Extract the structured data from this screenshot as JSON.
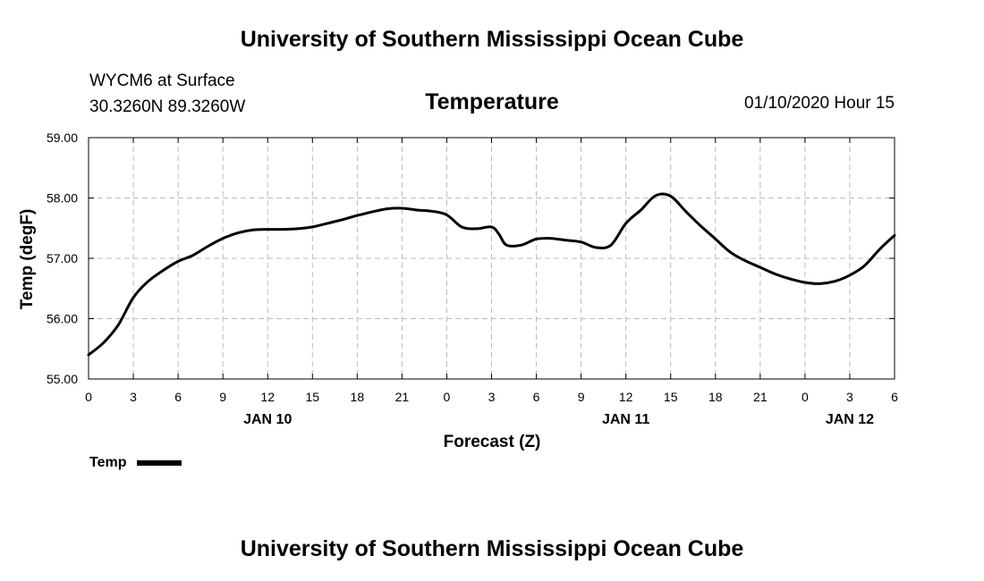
{
  "header": {
    "title": "University of Southern Mississippi Ocean Cube",
    "station": "WYCM6 at Surface",
    "coords": "30.3260N 89.3260W",
    "subtitle": "Temperature",
    "datetime": "01/10/2020 Hour 15"
  },
  "footer": {
    "title": "University of Southern Mississippi Ocean Cube"
  },
  "legend": {
    "label": "Temp"
  },
  "colors": {
    "line": "#000000",
    "grid": "#bbbbbb"
  },
  "chart_data": {
    "type": "line",
    "title": "Temperature",
    "xlabel": "Forecast (Z)",
    "ylabel": "Temp (degF)",
    "xlim": [
      0,
      54
    ],
    "ylim": [
      55.0,
      59.0
    ],
    "grid": true,
    "legend": "bottom-left",
    "x_ticks": [
      0,
      3,
      6,
      9,
      12,
      15,
      18,
      21,
      24,
      27,
      30,
      33,
      36,
      39,
      42,
      45,
      48,
      51,
      54
    ],
    "x_tick_labels": [
      "0",
      "3",
      "6",
      "9",
      "12",
      "15",
      "18",
      "21",
      "0",
      "3",
      "6",
      "9",
      "12",
      "15",
      "18",
      "21",
      "0",
      "3",
      "6"
    ],
    "y_ticks": [
      55.0,
      56.0,
      57.0,
      58.0,
      59.0
    ],
    "y_tick_labels": [
      "55.00",
      "56.00",
      "57.00",
      "58.00",
      "59.00"
    ],
    "day_labels": [
      {
        "x": 12,
        "label": "JAN 10"
      },
      {
        "x": 36,
        "label": "JAN 11"
      },
      {
        "x": 51,
        "label": "JAN 12"
      }
    ],
    "series": [
      {
        "name": "Temp",
        "x": [
          0,
          1,
          2,
          3,
          4,
          5,
          6,
          7,
          8,
          9,
          10,
          11,
          12,
          13,
          14,
          15,
          16,
          17,
          18,
          19,
          20,
          21,
          22,
          23,
          24,
          25,
          26,
          27,
          27.5,
          28,
          29,
          30,
          31,
          32,
          33,
          34,
          35,
          36,
          37,
          38,
          39,
          40,
          41,
          42,
          43,
          44,
          45,
          46,
          47,
          48,
          49,
          50,
          51,
          52,
          53,
          54
        ],
        "y": [
          55.4,
          55.6,
          55.9,
          56.35,
          56.62,
          56.8,
          56.95,
          57.05,
          57.2,
          57.33,
          57.42,
          57.47,
          57.48,
          57.48,
          57.49,
          57.52,
          57.58,
          57.64,
          57.71,
          57.77,
          57.82,
          57.83,
          57.8,
          57.78,
          57.72,
          57.52,
          57.49,
          57.52,
          57.4,
          57.22,
          57.22,
          57.32,
          57.33,
          57.3,
          57.27,
          57.18,
          57.22,
          57.58,
          57.8,
          58.04,
          58.03,
          57.78,
          57.54,
          57.32,
          57.1,
          56.96,
          56.85,
          56.74,
          56.66,
          56.6,
          56.58,
          56.62,
          56.72,
          56.88,
          57.15,
          57.38
        ]
      }
    ]
  }
}
